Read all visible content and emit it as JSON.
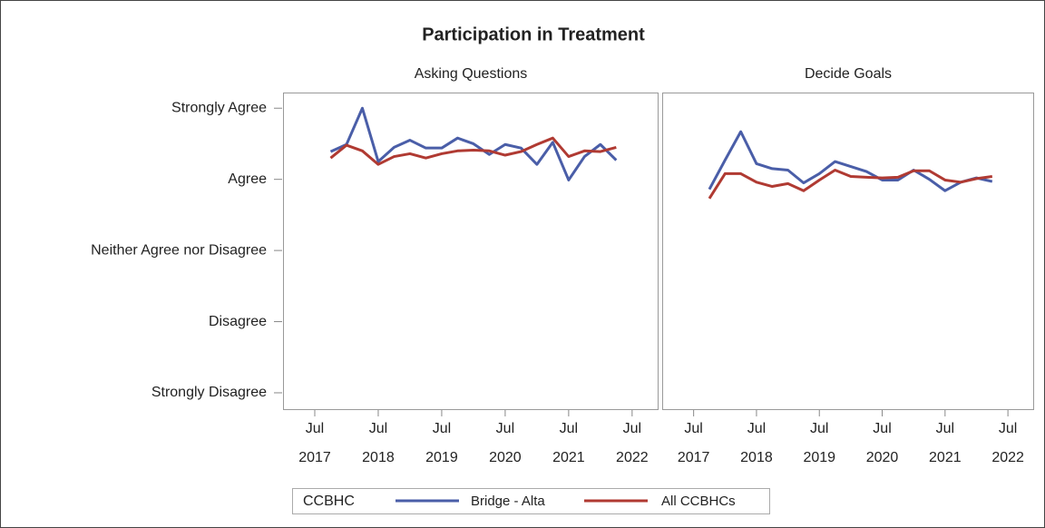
{
  "chart_data": {
    "type": "line",
    "title": "Participation in Treatment",
    "legend_title": "CCBHC",
    "x": [
      "2017-10",
      "2018-01",
      "2018-04",
      "2018-07",
      "2018-10",
      "2019-01",
      "2019-04",
      "2019-07",
      "2019-10",
      "2020-01",
      "2020-04",
      "2020-07",
      "2020-10",
      "2021-01",
      "2021-04",
      "2021-07",
      "2021-10",
      "2022-01",
      "2022-04"
    ],
    "xlim": [
      "2017-01",
      "2022-12"
    ],
    "xticks": [
      {
        "value": "2017-07",
        "label": "Jul 2017"
      },
      {
        "value": "2018-07",
        "label": "Jul 2018"
      },
      {
        "value": "2019-07",
        "label": "Jul 2019"
      },
      {
        "value": "2020-07",
        "label": "Jul 2020"
      },
      {
        "value": "2021-07",
        "label": "Jul 2021"
      },
      {
        "value": "2022-07",
        "label": "Jul 2022"
      }
    ],
    "ylim": [
      0.77,
      5.22
    ],
    "yticks": [
      {
        "value": 5,
        "label": "Strongly Agree"
      },
      {
        "value": 4,
        "label": "Agree"
      },
      {
        "value": 3,
        "label": "Neither Agree nor Disagree"
      },
      {
        "value": 2,
        "label": "Disagree"
      },
      {
        "value": 1,
        "label": "Strongly Disagree"
      }
    ],
    "panels": [
      {
        "title": "Asking Questions",
        "series": [
          {
            "name": "Bridge - Alta",
            "color": "#4a5ea8",
            "values": [
              4.39,
              4.49,
              5.0,
              4.25,
              4.45,
              4.55,
              4.44,
              4.44,
              4.58,
              4.5,
              4.35,
              4.49,
              4.44,
              4.21,
              4.52,
              3.99,
              4.32,
              4.49,
              4.27
            ]
          },
          {
            "name": "All CCBHCs",
            "color": "#b03a32",
            "values": [
              4.3,
              4.48,
              4.4,
              4.21,
              4.32,
              4.36,
              4.3,
              4.36,
              4.4,
              4.41,
              4.4,
              4.34,
              4.39,
              4.49,
              4.58,
              4.32,
              4.4,
              4.39,
              4.45
            ]
          }
        ]
      },
      {
        "title": "Decide Goals",
        "series": [
          {
            "name": "Bridge - Alta",
            "color": "#4a5ea8",
            "values": [
              3.86,
              4.27,
              4.67,
              4.22,
              4.15,
              4.13,
              3.95,
              4.08,
              4.25,
              4.18,
              4.11,
              3.99,
              3.99,
              4.13,
              4.0,
              3.84,
              3.96,
              4.02,
              3.97
            ]
          },
          {
            "name": "All CCBHCs",
            "color": "#b03a32",
            "values": [
              3.73,
              4.08,
              4.08,
              3.96,
              3.9,
              3.94,
              3.84,
              3.99,
              4.13,
              4.04,
              4.03,
              4.02,
              4.03,
              4.12,
              4.12,
              3.99,
              3.96,
              4.01,
              4.04
            ]
          }
        ]
      }
    ]
  }
}
